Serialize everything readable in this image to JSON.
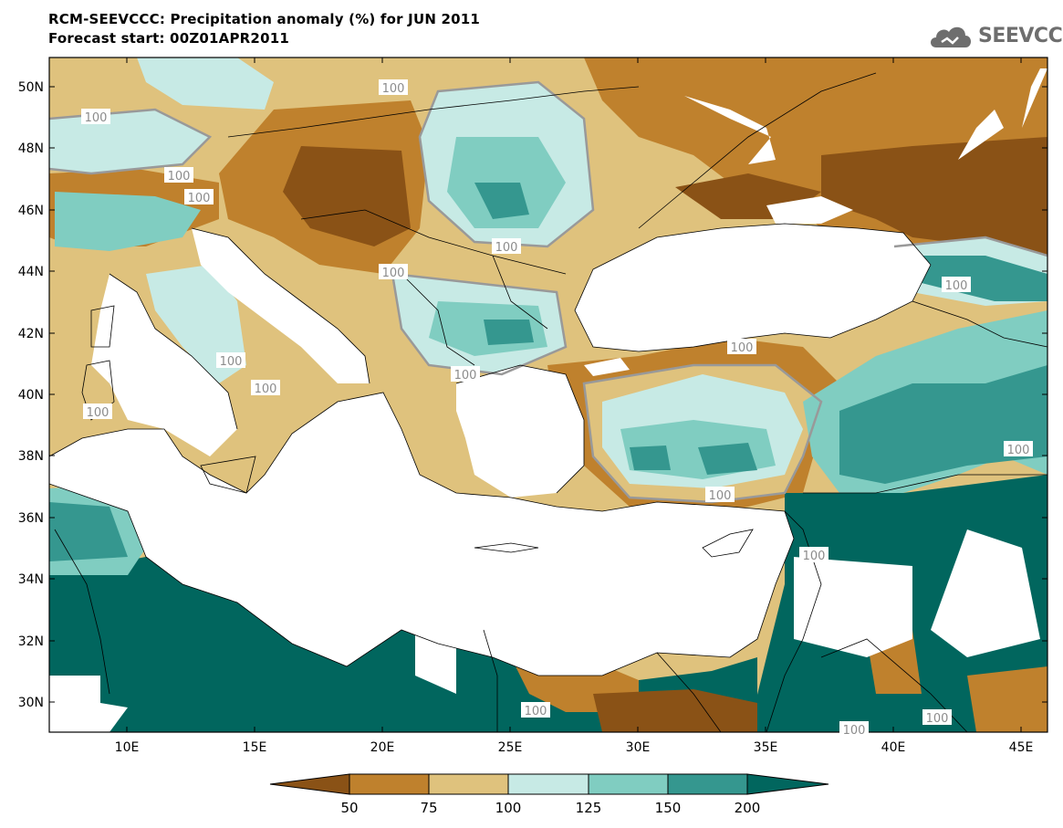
{
  "title": "RCM-SEEVCCC: Precipitation anomaly (%) for JUN 2011",
  "subtitle": "Forecast start: 00Z01APR2011",
  "logo": {
    "text": "SEEVCCC",
    "icon": "cloud-logo-icon"
  },
  "colors": {
    "sea": "#ffffff",
    "c_lt50": "#8a5216",
    "c_50_75": "#bf812d",
    "c_75_100": "#dfc27d",
    "c_100_125": "#c7eae5",
    "c_125_150": "#80cdc1",
    "c_150_200": "#35978f",
    "c_gt200": "#01665e",
    "contour": "#999999",
    "border": "#000000"
  },
  "axes": {
    "lon_ticks": [
      "10E",
      "15E",
      "20E",
      "25E",
      "30E",
      "35E",
      "40E",
      "45E"
    ],
    "lat_ticks": [
      "30N",
      "32N",
      "34N",
      "36N",
      "38N",
      "40N",
      "42N",
      "44N",
      "46N",
      "48N",
      "50N"
    ],
    "lon_range": [
      7,
      46
    ],
    "lat_range": [
      29,
      51
    ]
  },
  "contour_labels": [
    "100",
    "100",
    "100",
    "100",
    "100",
    "100",
    "100",
    "100",
    "100",
    "100",
    "100",
    "100",
    "100",
    "100",
    "100",
    "100",
    "100",
    "100",
    "100",
    "100",
    "100"
  ],
  "colorbar": {
    "boundaries": [
      "50",
      "75",
      "100",
      "125",
      "150",
      "200"
    ],
    "colors": [
      "#8a5216",
      "#bf812d",
      "#dfc27d",
      "#c7eae5",
      "#80cdc1",
      "#35978f",
      "#01665e"
    ]
  }
}
